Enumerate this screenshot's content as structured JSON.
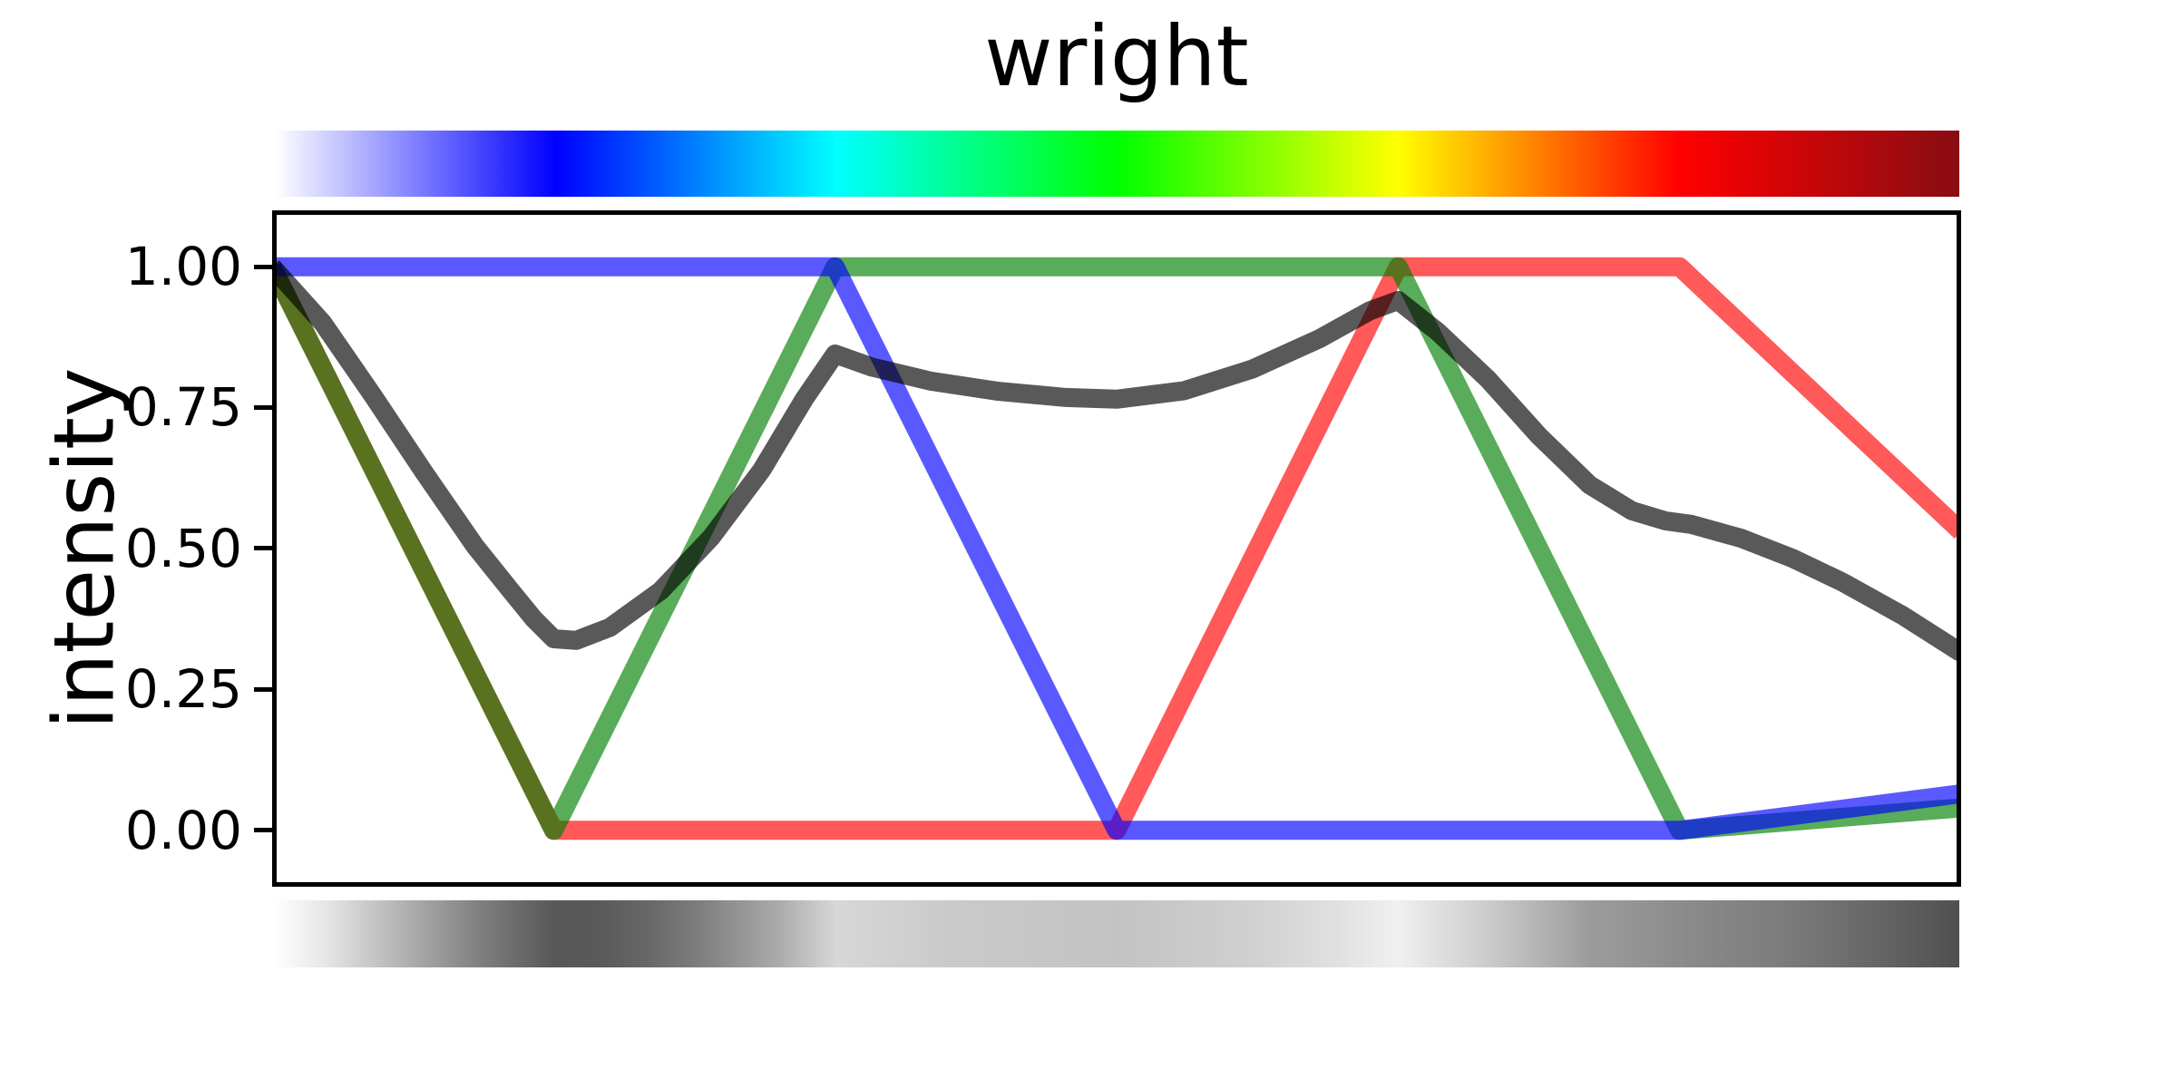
{
  "title": "wright",
  "ylabel": "intensity",
  "yticks": [
    "1.00",
    "0.75",
    "0.50",
    "0.25",
    "0.00"
  ],
  "chart_data": {
    "type": "line",
    "title": "wright",
    "xlabel": "",
    "ylabel": "intensity",
    "xlim": [
      0,
      1
    ],
    "ylim": [
      -0.1,
      1.1
    ],
    "grid": false,
    "legend": "none",
    "ytick_values": [
      0.0,
      0.25,
      0.5,
      0.75,
      1.0
    ],
    "description": "RGB channel intensities and perceived-lightness curve of the 'wright' colormap, with the colormap strip above the axes and its grayscale rendering below.",
    "line_width": 21,
    "line_opacity": 0.65,
    "series": [
      {
        "name": "red-channel",
        "color": "#ff0000",
        "points": [
          [
            0,
            1
          ],
          [
            0.1667,
            0
          ],
          [
            0.5,
            0
          ],
          [
            0.6667,
            1
          ],
          [
            0.8333,
            1
          ],
          [
            1,
            0.53
          ]
        ]
      },
      {
        "name": "green-channel",
        "color": "#008000",
        "points": [
          [
            0,
            1
          ],
          [
            0.1667,
            0
          ],
          [
            0.3333,
            1
          ],
          [
            0.6667,
            1
          ],
          [
            0.8333,
            0
          ],
          [
            1,
            0.04
          ]
        ]
      },
      {
        "name": "blue-channel",
        "color": "#0000ff",
        "points": [
          [
            0,
            1
          ],
          [
            0.3333,
            1
          ],
          [
            0.5,
            0
          ],
          [
            0.8333,
            0
          ],
          [
            1,
            0.065
          ]
        ]
      },
      {
        "name": "lightness",
        "color": "#000000",
        "points": [
          [
            0,
            1
          ],
          [
            0.03,
            0.9
          ],
          [
            0.06,
            0.77
          ],
          [
            0.09,
            0.635
          ],
          [
            0.12,
            0.505
          ],
          [
            0.14,
            0.43
          ],
          [
            0.155,
            0.375
          ],
          [
            0.1667,
            0.34
          ],
          [
            0.18,
            0.337
          ],
          [
            0.2,
            0.36
          ],
          [
            0.23,
            0.425
          ],
          [
            0.26,
            0.52
          ],
          [
            0.29,
            0.64
          ],
          [
            0.315,
            0.765
          ],
          [
            0.3333,
            0.845
          ],
          [
            0.355,
            0.822
          ],
          [
            0.39,
            0.797
          ],
          [
            0.43,
            0.779
          ],
          [
            0.47,
            0.768
          ],
          [
            0.5,
            0.765
          ],
          [
            0.54,
            0.78
          ],
          [
            0.58,
            0.818
          ],
          [
            0.62,
            0.872
          ],
          [
            0.65,
            0.922
          ],
          [
            0.6667,
            0.94
          ],
          [
            0.69,
            0.885
          ],
          [
            0.72,
            0.8
          ],
          [
            0.75,
            0.7
          ],
          [
            0.78,
            0.613
          ],
          [
            0.805,
            0.567
          ],
          [
            0.825,
            0.549
          ],
          [
            0.84,
            0.543
          ],
          [
            0.87,
            0.518
          ],
          [
            0.9,
            0.483
          ],
          [
            0.93,
            0.44
          ],
          [
            0.965,
            0.382
          ],
          [
            1,
            0.315
          ]
        ]
      }
    ],
    "colorbar_top": {
      "name": "wright colormap strip",
      "stops": [
        [
          0,
          "#ffffff"
        ],
        [
          0.1667,
          "#0000ff"
        ],
        [
          0.3333,
          "#00ffff"
        ],
        [
          0.5,
          "#00ff00"
        ],
        [
          0.6667,
          "#ffff00"
        ],
        [
          0.8333,
          "#ff0000"
        ],
        [
          1,
          "#870d12"
        ]
      ]
    },
    "colorbar_bottom": {
      "name": "grayscale rendering strip",
      "stops": [
        [
          0,
          "#ffffff"
        ],
        [
          0.03,
          "#e6e6e6"
        ],
        [
          0.06,
          "#c4c4c4"
        ],
        [
          0.09,
          "#a2a2a2"
        ],
        [
          0.12,
          "#818181"
        ],
        [
          0.145,
          "#6a6a6a"
        ],
        [
          0.1667,
          "#575757"
        ],
        [
          0.19,
          "#595959"
        ],
        [
          0.22,
          "#666666"
        ],
        [
          0.26,
          "#858585"
        ],
        [
          0.3,
          "#acacac"
        ],
        [
          0.3333,
          "#d7d7d7"
        ],
        [
          0.4,
          "#cacaca"
        ],
        [
          0.5,
          "#c3c3c3"
        ],
        [
          0.58,
          "#d0d0d0"
        ],
        [
          0.63,
          "#e0e0e0"
        ],
        [
          0.6667,
          "#f0f0f0"
        ],
        [
          0.72,
          "#cccccc"
        ],
        [
          0.78,
          "#9c9c9c"
        ],
        [
          0.84,
          "#8a8a8a"
        ],
        [
          0.9,
          "#7b7b7b"
        ],
        [
          0.95,
          "#666666"
        ],
        [
          1,
          "#505050"
        ]
      ]
    }
  }
}
